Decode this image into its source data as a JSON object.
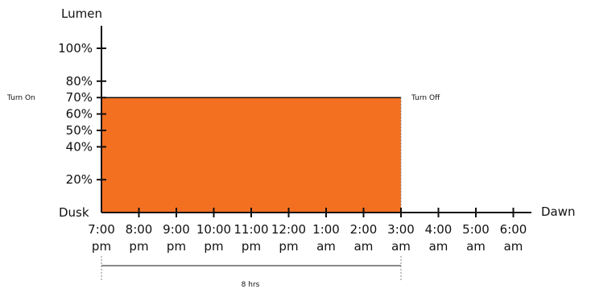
{
  "chart_data": {
    "type": "area",
    "ylabel": "Lumen",
    "xlabel": "Dawn",
    "y_origin_label": "Dusk",
    "yticks": [
      "100%",
      "80%",
      "70%",
      "60%",
      "50%",
      "40%",
      "20%"
    ],
    "ytick_values": [
      100,
      80,
      70,
      60,
      50,
      40,
      20
    ],
    "ylim": [
      0,
      100
    ],
    "x_categories": [
      {
        "time": "7:00",
        "period": "pm"
      },
      {
        "time": "8:00",
        "period": "pm"
      },
      {
        "time": "9:00",
        "period": "pm"
      },
      {
        "time": "10:00",
        "period": "pm"
      },
      {
        "time": "11:00",
        "period": "pm"
      },
      {
        "time": "12:00",
        "period": "pm"
      },
      {
        "time": "1:00",
        "period": "am"
      },
      {
        "time": "2:00",
        "period": "am"
      },
      {
        "time": "3:00",
        "period": "am"
      },
      {
        "time": "4:00",
        "period": "am"
      },
      {
        "time": "5:00",
        "period": "am"
      },
      {
        "time": "6:00",
        "period": "am"
      }
    ],
    "segments": [
      {
        "start": "7:00 pm",
        "end": "3:00 am",
        "level": 70,
        "color": "#f37021"
      }
    ],
    "annotations": {
      "turn_on": "Turn On",
      "turn_off": "Turn Off",
      "duration": "8 hrs"
    },
    "colors": {
      "fill": "#f37021",
      "axis": "#111111",
      "guide": "#888888"
    }
  }
}
